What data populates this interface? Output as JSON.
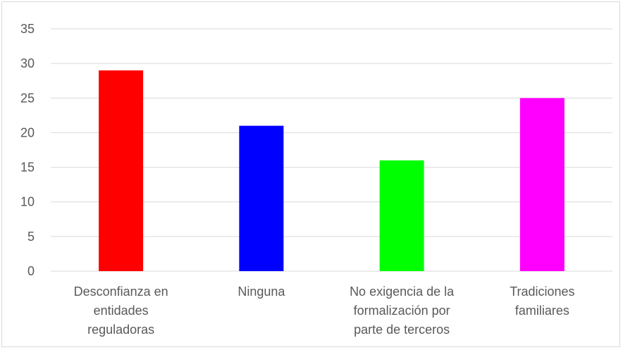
{
  "chart_data": {
    "type": "bar",
    "title": "",
    "xlabel": "",
    "ylabel": "",
    "categories": [
      [
        "Desconfianza en",
        "entidades",
        "reguladoras"
      ],
      [
        "Ninguna"
      ],
      [
        "No exigencia de la",
        "formalización por",
        "parte de terceros"
      ],
      [
        "Tradiciones",
        "familiares"
      ]
    ],
    "values": [
      29,
      21,
      16,
      25
    ],
    "colors": [
      "#ff0000",
      "#0000ff",
      "#00ff00",
      "#ff00ff"
    ],
    "ylim": [
      0,
      35
    ],
    "yticks": [
      0,
      5,
      10,
      15,
      20,
      25,
      30,
      35
    ],
    "grid": true,
    "legend": "none"
  }
}
